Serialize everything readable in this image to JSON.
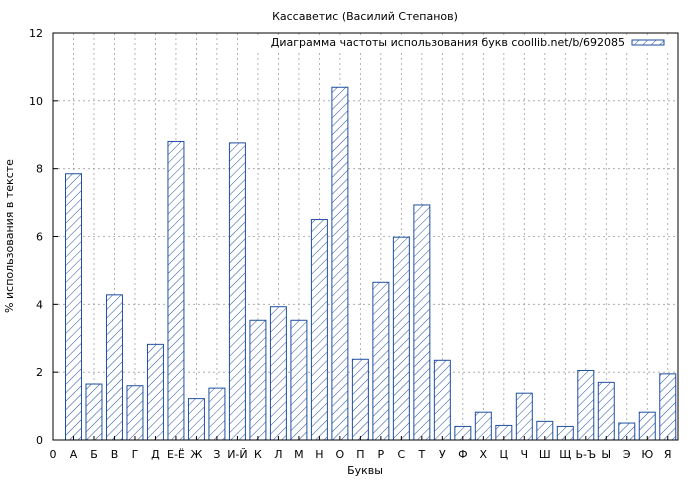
{
  "chart_data": {
    "type": "bar",
    "title": "Кассаветис (Василий Степанов)",
    "xlabel": "Буквы",
    "ylabel": "% использования в тексте",
    "ylim": [
      0,
      12
    ],
    "yticks": [
      "0",
      "2",
      "4",
      "6",
      "8",
      "10",
      "12"
    ],
    "xstart_label": "0",
    "grid": true,
    "legend_position": "top-right",
    "bar_color": "#1f4fa0",
    "series": [
      {
        "name": "Диаграмма частоты использования букв coollib.net/b/692085",
        "values": [
          7.85,
          1.65,
          4.28,
          1.6,
          2.82,
          8.8,
          1.22,
          1.53,
          8.76,
          3.53,
          3.93,
          3.53,
          6.5,
          10.4,
          2.38,
          4.65,
          5.98,
          6.93,
          2.35,
          0.4,
          0.82,
          0.43,
          1.38,
          0.55,
          0.4,
          2.05,
          1.7,
          0.5,
          0.82,
          1.95
        ]
      }
    ],
    "categories": [
      "А",
      "Б",
      "В",
      "Г",
      "Д",
      "Е-Ё",
      "Ж",
      "З",
      "И-Й",
      "К",
      "Л",
      "М",
      "Н",
      "О",
      "П",
      "Р",
      "С",
      "Т",
      "У",
      "Ф",
      "Х",
      "Ц",
      "Ч",
      "Ш",
      "Щ",
      "Ь-Ъ",
      "Ы",
      "Э",
      "Ю",
      "Я"
    ]
  }
}
